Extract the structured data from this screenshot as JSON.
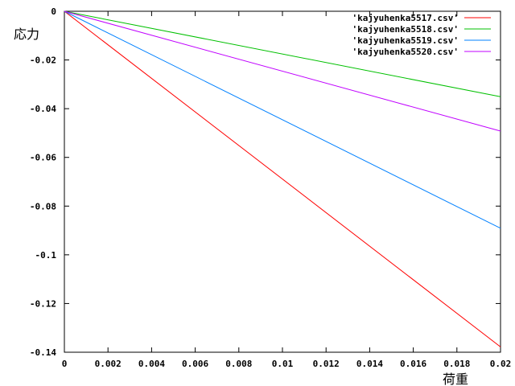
{
  "chart_data": {
    "type": "line",
    "title": "",
    "xlabel": "荷重",
    "ylabel": "応力",
    "xlim": [
      0,
      0.02
    ],
    "ylim": [
      -0.14,
      0
    ],
    "grid": false,
    "legend_position": "top-right",
    "x_ticks": [
      0,
      0.002,
      0.004,
      0.006,
      0.008,
      0.01,
      0.012,
      0.014,
      0.016,
      0.018,
      0.02
    ],
    "x_tick_labels": [
      "0",
      "0.002",
      "0.004",
      "0.006",
      "0.008",
      "0.01",
      "0.012",
      "0.014",
      "0.016",
      "0.018",
      "0.02"
    ],
    "y_ticks": [
      0,
      -0.02,
      -0.04,
      -0.06,
      -0.08,
      -0.1,
      -0.12,
      -0.14
    ],
    "y_tick_labels": [
      "0",
      "-0.02",
      "-0.04",
      "-0.06",
      "-0.08",
      "-0.1",
      "-0.12",
      "-0.14"
    ],
    "series": [
      {
        "name": "'kajyuhenka5517.csv'",
        "color": "#ff0000",
        "x": [
          0,
          0.02
        ],
        "y": [
          0,
          -0.1378
        ]
      },
      {
        "name": "'kajyuhenka5518.csv'",
        "color": "#00c000",
        "x": [
          0,
          0.02
        ],
        "y": [
          0,
          -0.0351
        ]
      },
      {
        "name": "'kajyuhenka5519.csv'",
        "color": "#0080ff",
        "x": [
          0,
          0.02
        ],
        "y": [
          0,
          -0.0891
        ]
      },
      {
        "name": "'kajyuhenka5520.csv'",
        "color": "#c000ff",
        "x": [
          0,
          0.02
        ],
        "y": [
          0,
          -0.0492
        ]
      }
    ]
  }
}
